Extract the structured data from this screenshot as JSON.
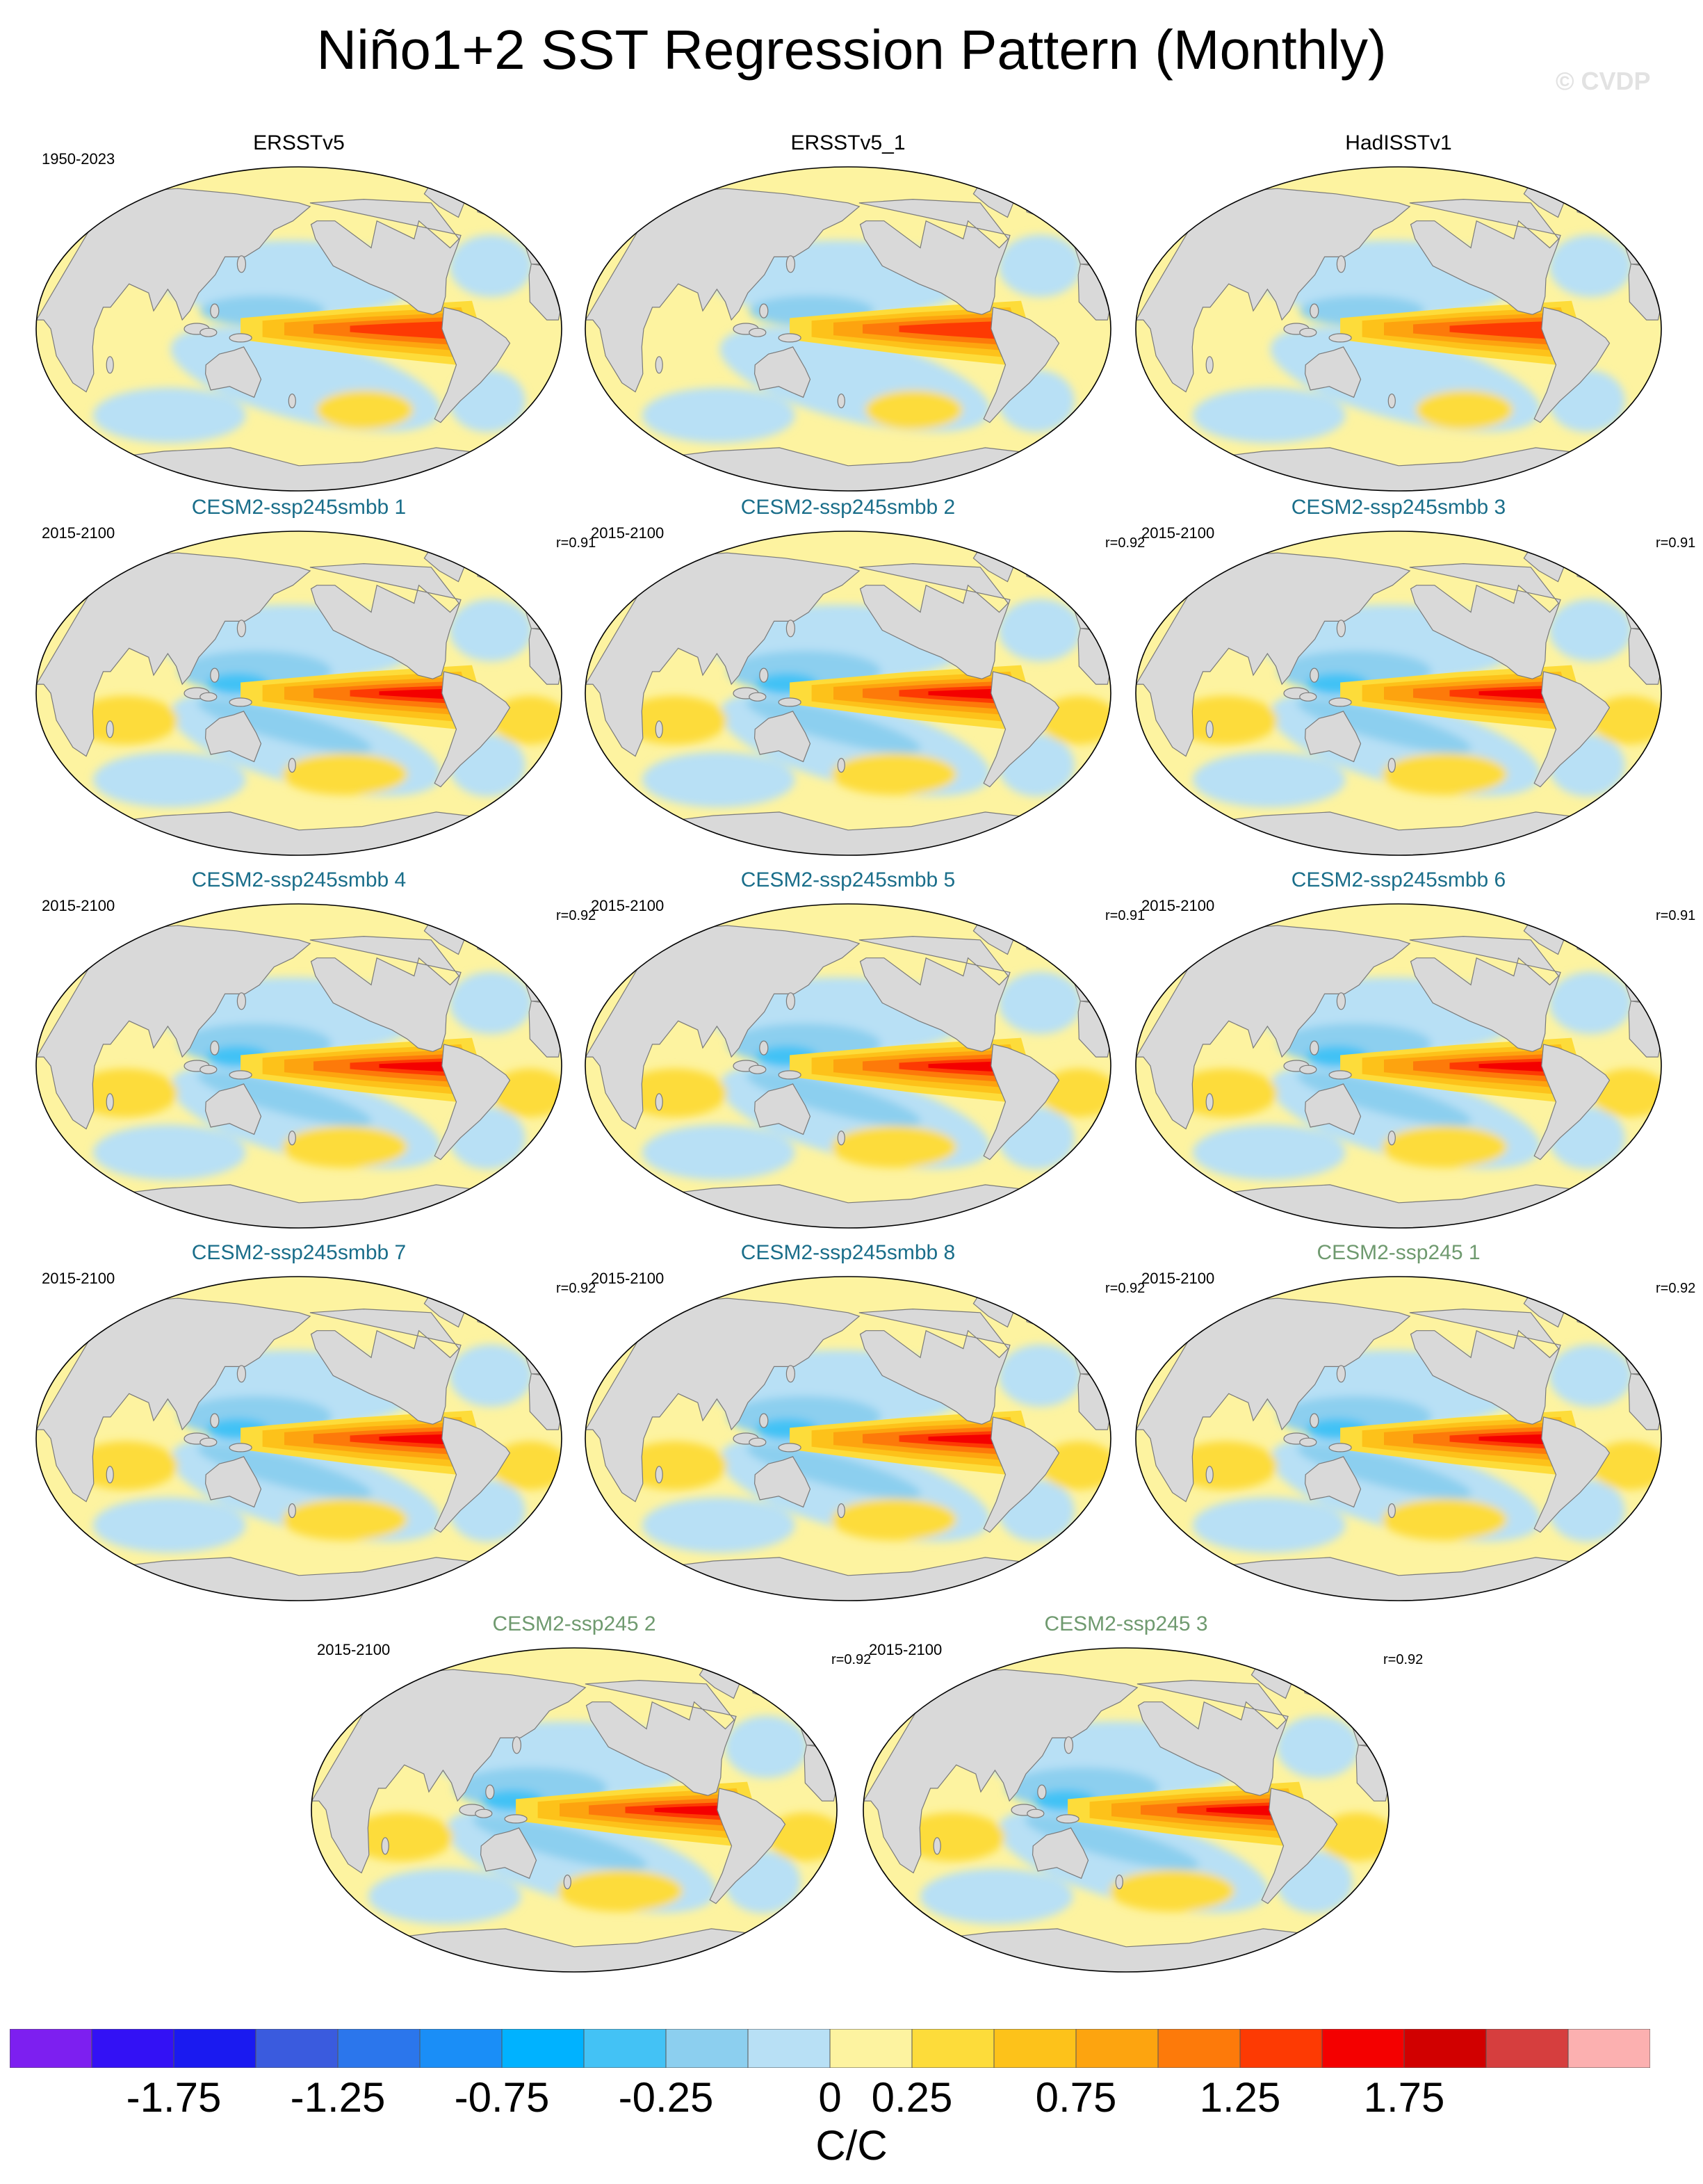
{
  "title": "Niño1+2 SST Regression Pattern (Monthly)",
  "watermark": "© CVDP",
  "colors": {
    "obs_title": "#000000",
    "smbb_title": "#1a6e8a",
    "ssp_title": "#6f9a6f",
    "land": "#d9d9d9"
  },
  "panels": [
    {
      "title": "ERSSTv5",
      "period": "1950-2023",
      "corr": "",
      "group": "obs"
    },
    {
      "title": "ERSSTv5_1",
      "period": "",
      "corr": "",
      "group": "obs"
    },
    {
      "title": "HadISSTv1",
      "period": "",
      "corr": "",
      "group": "obs"
    },
    {
      "title": "CESM2-ssp245smbb 1",
      "period": "2015-2100",
      "corr": "r=0.91",
      "group": "smbb"
    },
    {
      "title": "CESM2-ssp245smbb 2",
      "period": "2015-2100",
      "corr": "r=0.92",
      "group": "smbb"
    },
    {
      "title": "CESM2-ssp245smbb 3",
      "period": "2015-2100",
      "corr": "r=0.91",
      "group": "smbb"
    },
    {
      "title": "CESM2-ssp245smbb 4",
      "period": "2015-2100",
      "corr": "r=0.92",
      "group": "smbb"
    },
    {
      "title": "CESM2-ssp245smbb 5",
      "period": "2015-2100",
      "corr": "r=0.91",
      "group": "smbb"
    },
    {
      "title": "CESM2-ssp245smbb 6",
      "period": "2015-2100",
      "corr": "r=0.91",
      "group": "smbb"
    },
    {
      "title": "CESM2-ssp245smbb 7",
      "period": "2015-2100",
      "corr": "r=0.92",
      "group": "smbb"
    },
    {
      "title": "CESM2-ssp245smbb 8",
      "period": "2015-2100",
      "corr": "r=0.92",
      "group": "smbb"
    },
    {
      "title": "CESM2-ssp245 1",
      "period": "2015-2100",
      "corr": "r=0.92",
      "group": "ssp"
    },
    {
      "title": "CESM2-ssp245 2",
      "period": "2015-2100",
      "corr": "r=0.92",
      "group": "ssp"
    },
    {
      "title": "CESM2-ssp245 3",
      "period": "2015-2100",
      "corr": "r=0.92",
      "group": "ssp"
    }
  ],
  "colorbar": {
    "units": "C/C",
    "colors": [
      "#7d1ff0",
      "#3311f5",
      "#1a1af0",
      "#3a5bde",
      "#2b76ec",
      "#1a8ef7",
      "#00b2ff",
      "#43c2f5",
      "#8ccfef",
      "#b8e0f5",
      "#fdf3a0",
      "#fddc3a",
      "#fdc21a",
      "#fda40f",
      "#fd7a0a",
      "#fd3a03",
      "#f40000",
      "#d10000",
      "#d63e3e",
      "#fcb0b0"
    ],
    "labels": [
      "-1.75",
      "-1.25",
      "-0.75",
      "-0.25",
      "0",
      "0.25",
      "0.75",
      "1.25",
      "1.75"
    ],
    "label_boundaries": [
      2,
      4,
      6,
      8,
      10,
      11,
      13,
      15,
      17
    ]
  }
}
